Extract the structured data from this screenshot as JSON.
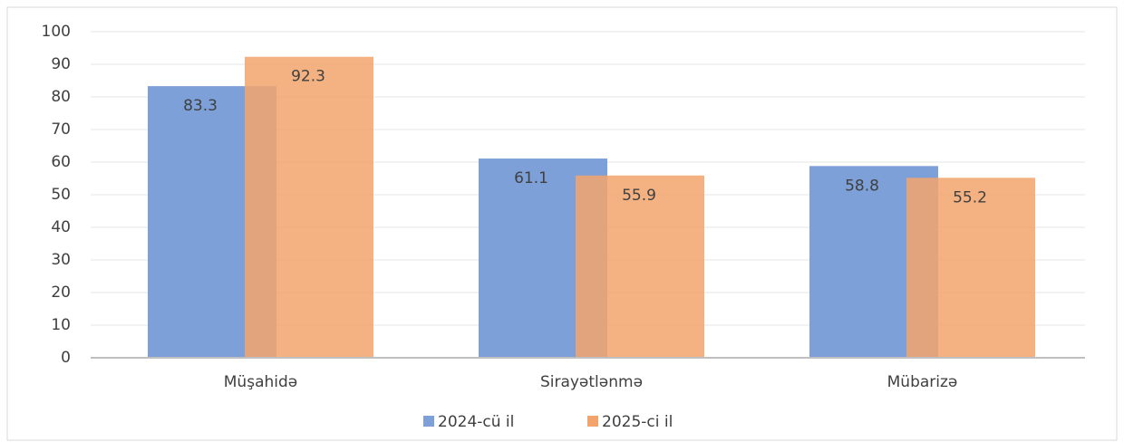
{
  "chart_data": {
    "type": "bar",
    "categories": [
      "Müşahidə",
      "Sirayətlənmə",
      "Mübarizə"
    ],
    "series": [
      {
        "name": "2024-cü il",
        "color": "#7da0d8",
        "values": [
          83.3,
          61.1,
          58.8
        ]
      },
      {
        "name": "2025-ci il",
        "color": "#f2a46c",
        "values": [
          92.3,
          55.9,
          55.2
        ]
      }
    ],
    "ylim": [
      0,
      100
    ],
    "yticks": [
      0,
      10,
      20,
      30,
      40,
      50,
      60,
      70,
      80,
      90,
      100
    ],
    "grid": true,
    "legend": "bottom"
  }
}
